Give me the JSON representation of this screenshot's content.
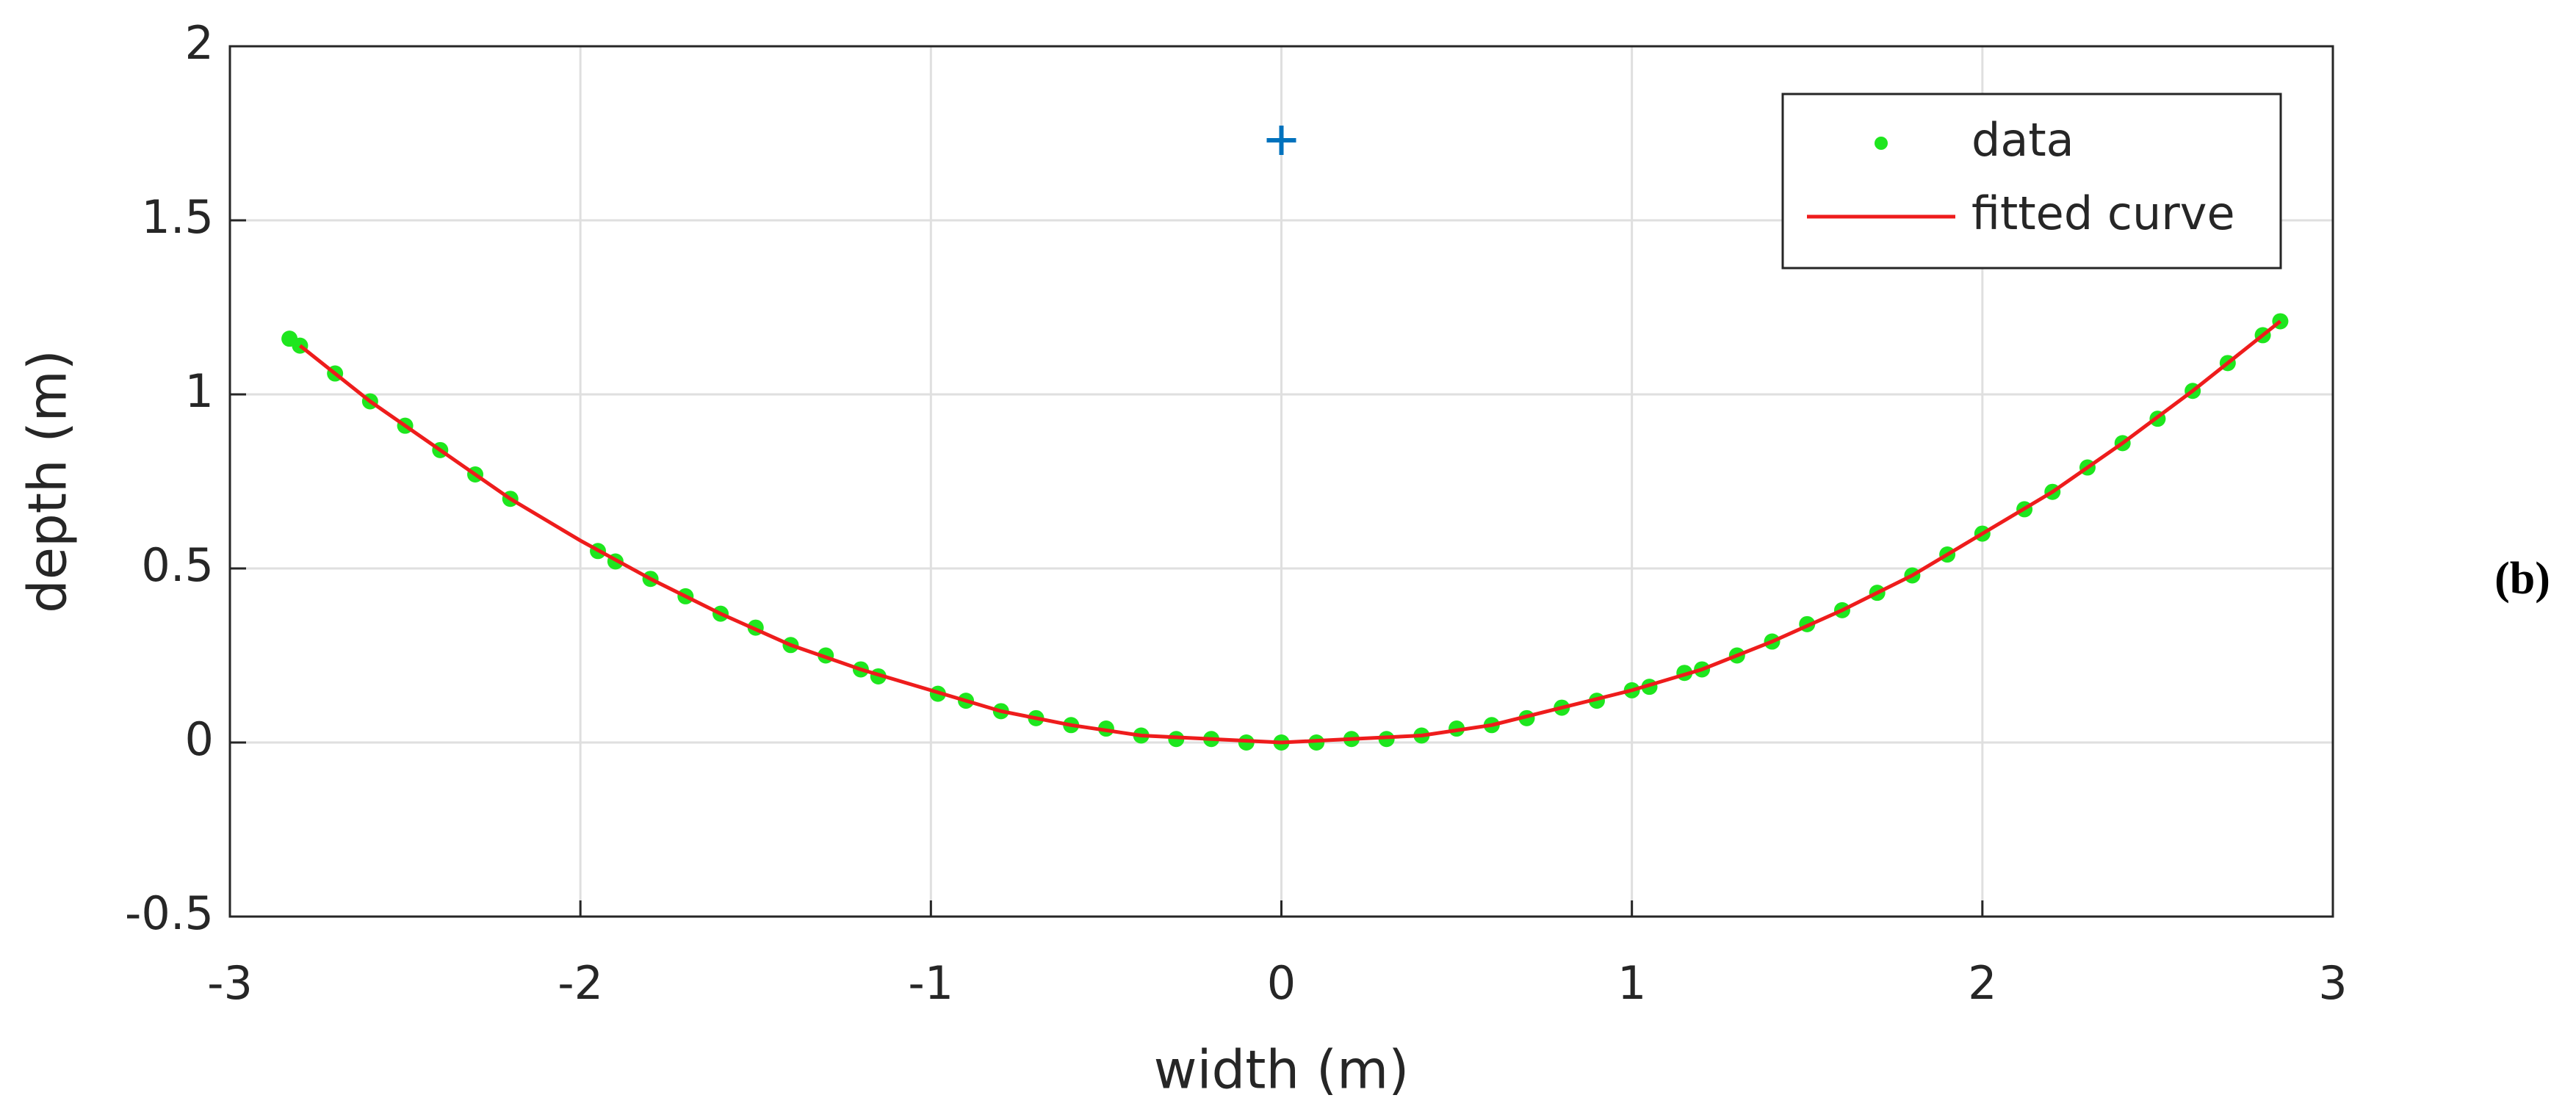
{
  "chart_data": {
    "type": "scatter",
    "xlabel": "width (m)",
    "ylabel": "depth (m)",
    "xlim": [
      -3,
      3
    ],
    "ylim": [
      -0.5,
      2
    ],
    "xticks": [
      -3,
      -2,
      -1,
      0,
      1,
      2,
      3
    ],
    "yticks": [
      -0.5,
      0,
      0.5,
      1,
      1.5,
      2
    ],
    "grid": true,
    "legend": "upper right",
    "series": [
      {
        "name": "data",
        "color": "#1ee61e",
        "mode": "markers",
        "x": [
          -2.83,
          -2.8,
          -2.7,
          -2.6,
          -2.5,
          -2.4,
          -2.3,
          -2.2,
          -1.95,
          -1.9,
          -1.8,
          -1.7,
          -1.6,
          -1.5,
          -1.4,
          -1.3,
          -1.2,
          -1.15,
          -0.98,
          -0.9,
          -0.8,
          -0.7,
          -0.6,
          -0.5,
          -0.4,
          -0.3,
          -0.2,
          -0.1,
          0,
          0.1,
          0.2,
          0.3,
          0.4,
          0.5,
          0.6,
          0.7,
          0.8,
          0.9,
          1.0,
          1.05,
          1.15,
          1.2,
          1.3,
          1.4,
          1.5,
          1.6,
          1.7,
          1.8,
          1.9,
          2.0,
          2.12,
          2.2,
          2.3,
          2.4,
          2.5,
          2.6,
          2.7,
          2.8,
          2.85
        ],
        "values": [
          1.16,
          1.14,
          1.06,
          0.98,
          0.91,
          0.84,
          0.77,
          0.7,
          0.55,
          0.52,
          0.47,
          0.42,
          0.37,
          0.33,
          0.28,
          0.25,
          0.21,
          0.19,
          0.14,
          0.12,
          0.09,
          0.07,
          0.05,
          0.04,
          0.02,
          0.01,
          0.01,
          0.0,
          0.0,
          0.0,
          0.01,
          0.01,
          0.02,
          0.04,
          0.05,
          0.07,
          0.1,
          0.12,
          0.15,
          0.16,
          0.2,
          0.21,
          0.25,
          0.29,
          0.34,
          0.38,
          0.43,
          0.48,
          0.54,
          0.6,
          0.67,
          0.72,
          0.79,
          0.86,
          0.93,
          1.01,
          1.09,
          1.17,
          1.21
        ]
      },
      {
        "name": "fitted curve",
        "color": "#ee1c1c",
        "mode": "line",
        "x": [
          -2.8,
          -2.6,
          -2.4,
          -2.2,
          -2,
          -1.8,
          -1.6,
          -1.4,
          -1.2,
          -1,
          -0.8,
          -0.6,
          -0.4,
          -0.2,
          0,
          0.2,
          0.4,
          0.6,
          0.8,
          1,
          1.2,
          1.4,
          1.6,
          1.8,
          2,
          2.2,
          2.4,
          2.6,
          2.85
        ],
        "values": [
          1.14,
          0.98,
          0.84,
          0.7,
          0.58,
          0.47,
          0.37,
          0.28,
          0.21,
          0.15,
          0.09,
          0.05,
          0.02,
          0.01,
          0,
          0.01,
          0.02,
          0.05,
          0.1,
          0.15,
          0.21,
          0.29,
          0.38,
          0.48,
          0.6,
          0.72,
          0.86,
          1.01,
          1.21
        ]
      }
    ],
    "points": [
      {
        "x": 0,
        "y": 1.73,
        "color": "#0072bd",
        "marker": "plus"
      }
    ]
  },
  "panel_label": "(b)"
}
